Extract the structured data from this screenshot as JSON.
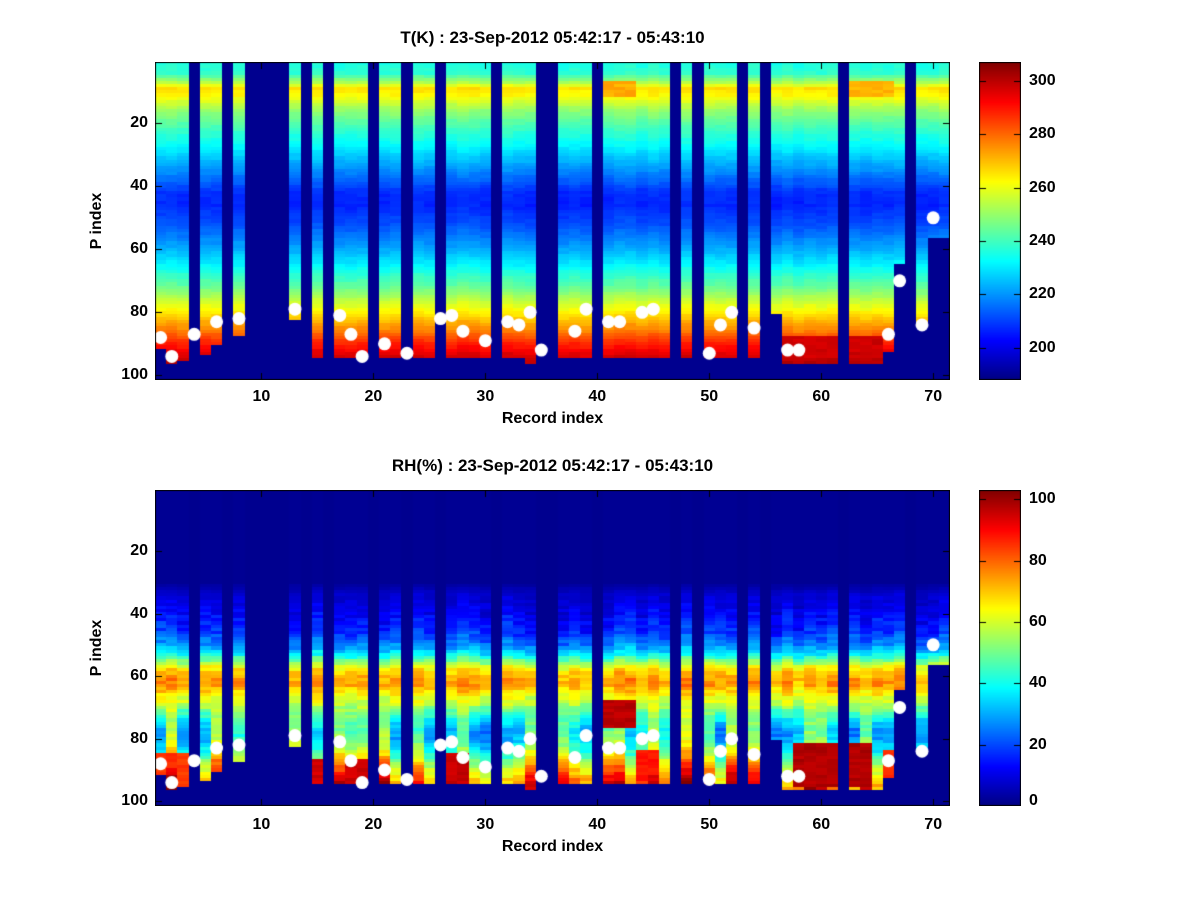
{
  "figure": {
    "background": "#ffffff",
    "text_color": "#000000"
  },
  "chart_data": [
    {
      "type": "heatmap",
      "title": "T(K) : 23-Sep-2012 05:42:17 - 05:43:10",
      "xlabel": "Record index",
      "ylabel": "P index",
      "x_range": [
        1,
        71
      ],
      "y_range": [
        1,
        101
      ],
      "y_axis_reversed": true,
      "grid": false,
      "xticks": [
        10,
        20,
        30,
        40,
        50,
        60,
        70
      ],
      "yticks": [
        20,
        40,
        60,
        80,
        100
      ],
      "colormap": "jet",
      "missing_value_color": "#00008f",
      "dot_color": "#ffffff",
      "color_range": [
        188,
        307
      ],
      "colorbar_ticks": [
        200,
        220,
        240,
        260,
        280,
        300
      ],
      "colorbar_position": "right",
      "profile_p": [
        1,
        4,
        7,
        9,
        11,
        14,
        16,
        19,
        23,
        28,
        32,
        36,
        42,
        46,
        52,
        58,
        63,
        67,
        71,
        74,
        77,
        80,
        83,
        86,
        89,
        92,
        95,
        98,
        101
      ],
      "profile_value": [
        236,
        238,
        253,
        266,
        263,
        255,
        250,
        244,
        238,
        231,
        224,
        218,
        208,
        207,
        212,
        220,
        228,
        236,
        243,
        250,
        257,
        264,
        271,
        278,
        286,
        293,
        299,
        303,
        305
      ],
      "missing_records": [
        4,
        7,
        9,
        10,
        11,
        12,
        14,
        16,
        20,
        23,
        26,
        31,
        35,
        36,
        40,
        47,
        49,
        53,
        55,
        62,
        68
      ],
      "default_bottom_p": 94,
      "record_bottom_p": {
        "1": 91,
        "2": 96,
        "3": 95,
        "5": 93,
        "6": 90,
        "8": 87,
        "13": 82,
        "34": 96,
        "56": 80,
        "57": 96,
        "58": 96,
        "59": 96,
        "60": 96,
        "61": 96,
        "63": 96,
        "64": 96,
        "65": 96,
        "66": 92,
        "67": 64,
        "69": 84,
        "70": 56,
        "71": 56
      },
      "surface_dots": [
        [
          1,
          88
        ],
        [
          2,
          94
        ],
        [
          4,
          87
        ],
        [
          6,
          83
        ],
        [
          8,
          82
        ],
        [
          13,
          79
        ],
        [
          17,
          81
        ],
        [
          18,
          87
        ],
        [
          19,
          94
        ],
        [
          21,
          90
        ],
        [
          23,
          93
        ],
        [
          26,
          82
        ],
        [
          27,
          81
        ],
        [
          28,
          86
        ],
        [
          30,
          89
        ],
        [
          32,
          83
        ],
        [
          33,
          84
        ],
        [
          34,
          80
        ],
        [
          35,
          92
        ],
        [
          38,
          86
        ],
        [
          39,
          79
        ],
        [
          41,
          83
        ],
        [
          42,
          83
        ],
        [
          44,
          80
        ],
        [
          45,
          79
        ],
        [
          50,
          93
        ],
        [
          51,
          84
        ],
        [
          52,
          80
        ],
        [
          54,
          85
        ],
        [
          57,
          92
        ],
        [
          58,
          92
        ],
        [
          66,
          87
        ],
        [
          67,
          70
        ],
        [
          69,
          84
        ],
        [
          70,
          50
        ]
      ],
      "anomalies": [
        {
          "records": [
            41,
            43
          ],
          "p": [
            7,
            11
          ],
          "value": 272
        },
        {
          "records": [
            63,
            66
          ],
          "p": [
            7,
            11
          ],
          "value": 271
        },
        {
          "records": [
            57,
            65
          ],
          "p": [
            88,
            96
          ],
          "value": 298
        }
      ]
    },
    {
      "type": "heatmap",
      "title": "RH(%) : 23-Sep-2012 05:42:17 - 05:43:10",
      "xlabel": "Record index",
      "ylabel": "P index",
      "x_range": [
        1,
        71
      ],
      "y_range": [
        1,
        101
      ],
      "y_axis_reversed": true,
      "grid": false,
      "xticks": [
        10,
        20,
        30,
        40,
        50,
        60,
        70
      ],
      "yticks": [
        20,
        40,
        60,
        80,
        100
      ],
      "colormap": "jet",
      "missing_value_color": "#00008f",
      "dot_color": "#ffffff",
      "color_range": [
        0,
        103
      ],
      "colorbar_ticks": [
        0,
        20,
        40,
        60,
        80,
        100
      ],
      "colorbar_position": "right",
      "profile_p": [
        1,
        30,
        34,
        40,
        46,
        50,
        53,
        55,
        57,
        59,
        61,
        63,
        65,
        67,
        69,
        71,
        74,
        77,
        80,
        83,
        86,
        89,
        92,
        95,
        101
      ],
      "profile_value": [
        2,
        2,
        8,
        12,
        18,
        26,
        38,
        50,
        62,
        70,
        74,
        74,
        68,
        62,
        58,
        52,
        45,
        40,
        42,
        48,
        58,
        68,
        78,
        85,
        90
      ],
      "missing_records": [
        4,
        7,
        9,
        10,
        11,
        12,
        14,
        16,
        20,
        23,
        26,
        31,
        35,
        36,
        40,
        47,
        49,
        53,
        55,
        62,
        68
      ],
      "default_bottom_p": 94,
      "record_bottom_p": {
        "1": 91,
        "2": 96,
        "3": 95,
        "5": 93,
        "6": 90,
        "8": 87,
        "13": 82,
        "34": 96,
        "56": 80,
        "57": 96,
        "58": 96,
        "59": 96,
        "60": 96,
        "61": 96,
        "63": 96,
        "64": 96,
        "65": 96,
        "66": 92,
        "67": 64,
        "69": 84,
        "70": 56,
        "71": 56
      },
      "surface_dots": [
        [
          1,
          88
        ],
        [
          2,
          94
        ],
        [
          4,
          87
        ],
        [
          6,
          83
        ],
        [
          8,
          82
        ],
        [
          13,
          79
        ],
        [
          17,
          81
        ],
        [
          18,
          87
        ],
        [
          19,
          94
        ],
        [
          21,
          90
        ],
        [
          23,
          93
        ],
        [
          26,
          82
        ],
        [
          27,
          81
        ],
        [
          28,
          86
        ],
        [
          30,
          89
        ],
        [
          32,
          83
        ],
        [
          33,
          84
        ],
        [
          34,
          80
        ],
        [
          35,
          92
        ],
        [
          38,
          86
        ],
        [
          39,
          79
        ],
        [
          41,
          83
        ],
        [
          42,
          83
        ],
        [
          44,
          80
        ],
        [
          45,
          79
        ],
        [
          50,
          93
        ],
        [
          51,
          84
        ],
        [
          52,
          80
        ],
        [
          54,
          85
        ],
        [
          57,
          92
        ],
        [
          58,
          92
        ],
        [
          66,
          87
        ],
        [
          67,
          70
        ],
        [
          69,
          84
        ],
        [
          70,
          50
        ]
      ],
      "anomalies": [
        {
          "records": [
            1,
            3
          ],
          "p": [
            85,
            95
          ],
          "value": 85
        },
        {
          "records": [
            15,
            15
          ],
          "p": [
            87,
            95
          ],
          "value": 95
        },
        {
          "records": [
            18,
            19
          ],
          "p": [
            87,
            95
          ],
          "value": 95
        },
        {
          "records": [
            27,
            28
          ],
          "p": [
            85,
            95
          ],
          "value": 96
        },
        {
          "records": [
            41,
            43
          ],
          "p": [
            68,
            76
          ],
          "value": 97
        },
        {
          "records": [
            44,
            45
          ],
          "p": [
            84,
            93
          ],
          "value": 88
        },
        {
          "records": [
            58,
            64
          ],
          "p": [
            82,
            95
          ],
          "value": 98
        },
        {
          "records": [
            66,
            67
          ],
          "p": [
            84,
            92
          ],
          "value": 85
        }
      ]
    }
  ]
}
